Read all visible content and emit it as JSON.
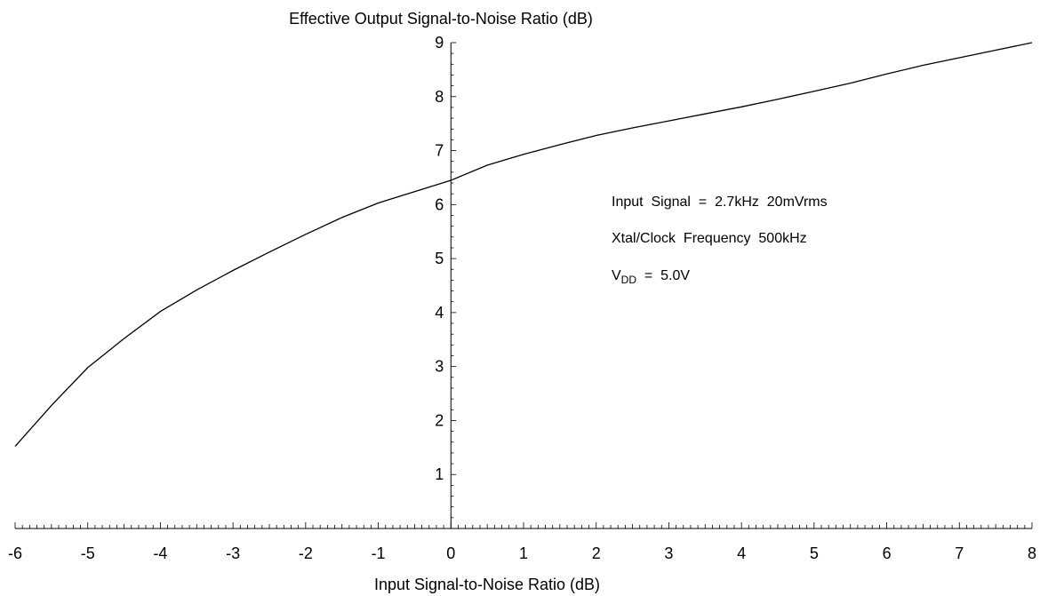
{
  "chart_data": {
    "type": "line",
    "title": "Effective Output Signal-to-Noise Ratio (dB)",
    "xlabel": "Input Signal-to-Noise Ratio (dB)",
    "ylabel": "",
    "xlim": [
      -6,
      8
    ],
    "ylim": [
      0,
      9
    ],
    "x_ticks": [
      "-6",
      "-5",
      "-4",
      "-3",
      "-2",
      "-1",
      "0",
      "1",
      "2",
      "3",
      "4",
      "5",
      "6",
      "7",
      "8"
    ],
    "y_ticks": [
      "1",
      "2",
      "3",
      "4",
      "5",
      "6",
      "7",
      "8",
      "9"
    ],
    "grid": false,
    "series": [
      {
        "x": [
          -6.0,
          -5.5,
          -5.0,
          -4.5,
          -4.0,
          -3.5,
          -3.0,
          -2.5,
          -2.0,
          -1.5,
          -1.0,
          -0.5,
          0.0,
          0.5,
          1.0,
          1.5,
          2.0,
          2.5,
          3.0,
          3.5,
          4.0,
          4.5,
          5.0,
          5.5,
          6.0,
          6.5,
          7.0,
          7.5,
          8.0
        ],
        "y": [
          1.52,
          2.28,
          2.98,
          3.52,
          4.02,
          4.42,
          4.78,
          5.12,
          5.45,
          5.76,
          6.03,
          6.24,
          6.45,
          6.73,
          6.93,
          7.11,
          7.28,
          7.42,
          7.55,
          7.68,
          7.81,
          7.95,
          8.1,
          8.25,
          8.42,
          8.58,
          8.72,
          8.86,
          9.0
        ],
        "color": "#000000"
      }
    ],
    "annotations": {
      "line1": "Input  Signal  =  2.7kHz  20mVrms",
      "line2": "Xtal/Clock  Frequency  500kHz",
      "vdd_base": "V",
      "vdd_sub": "DD",
      "vdd_rest": "  =  5.0V"
    }
  }
}
